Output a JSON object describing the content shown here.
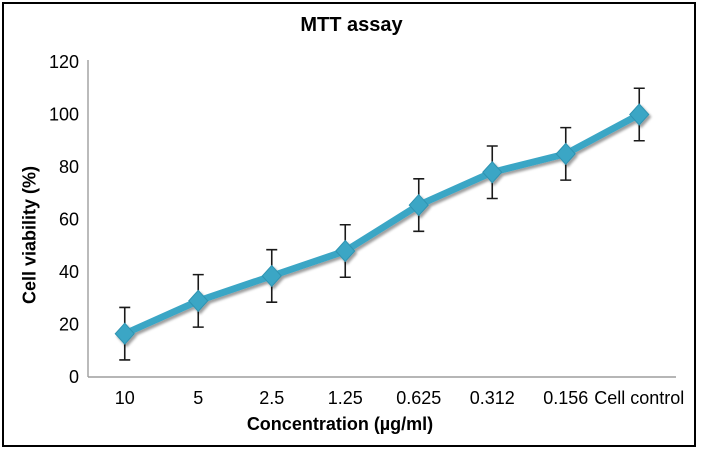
{
  "chart_data": {
    "type": "line",
    "title": "MTT assay",
    "xlabel": "Concentration (µg/ml)",
    "ylabel": "Cell viability (%)",
    "categories": [
      "10",
      "5",
      "2.5",
      "1.25",
      "0.625",
      "0.312",
      "0.156",
      "Cell control"
    ],
    "series": [
      {
        "name": "Cell viability",
        "values": [
          16.5,
          29,
          38.5,
          48,
          65.5,
          78,
          85,
          100
        ],
        "error_plus": 10,
        "error_minus": 10
      }
    ],
    "ylim": [
      0,
      120
    ],
    "ytick_step": 20,
    "grid": false,
    "legend": "none",
    "marker": "diamond",
    "colors": {
      "line": "#3BA6C5",
      "marker": "#3BA6C5",
      "marker_edge": "#2F93B1",
      "error_bar": "#1a1a1a",
      "axis_line": "#9e9e9e",
      "text": "#000000",
      "frame_border": "#000000",
      "background": "#ffffff"
    }
  }
}
